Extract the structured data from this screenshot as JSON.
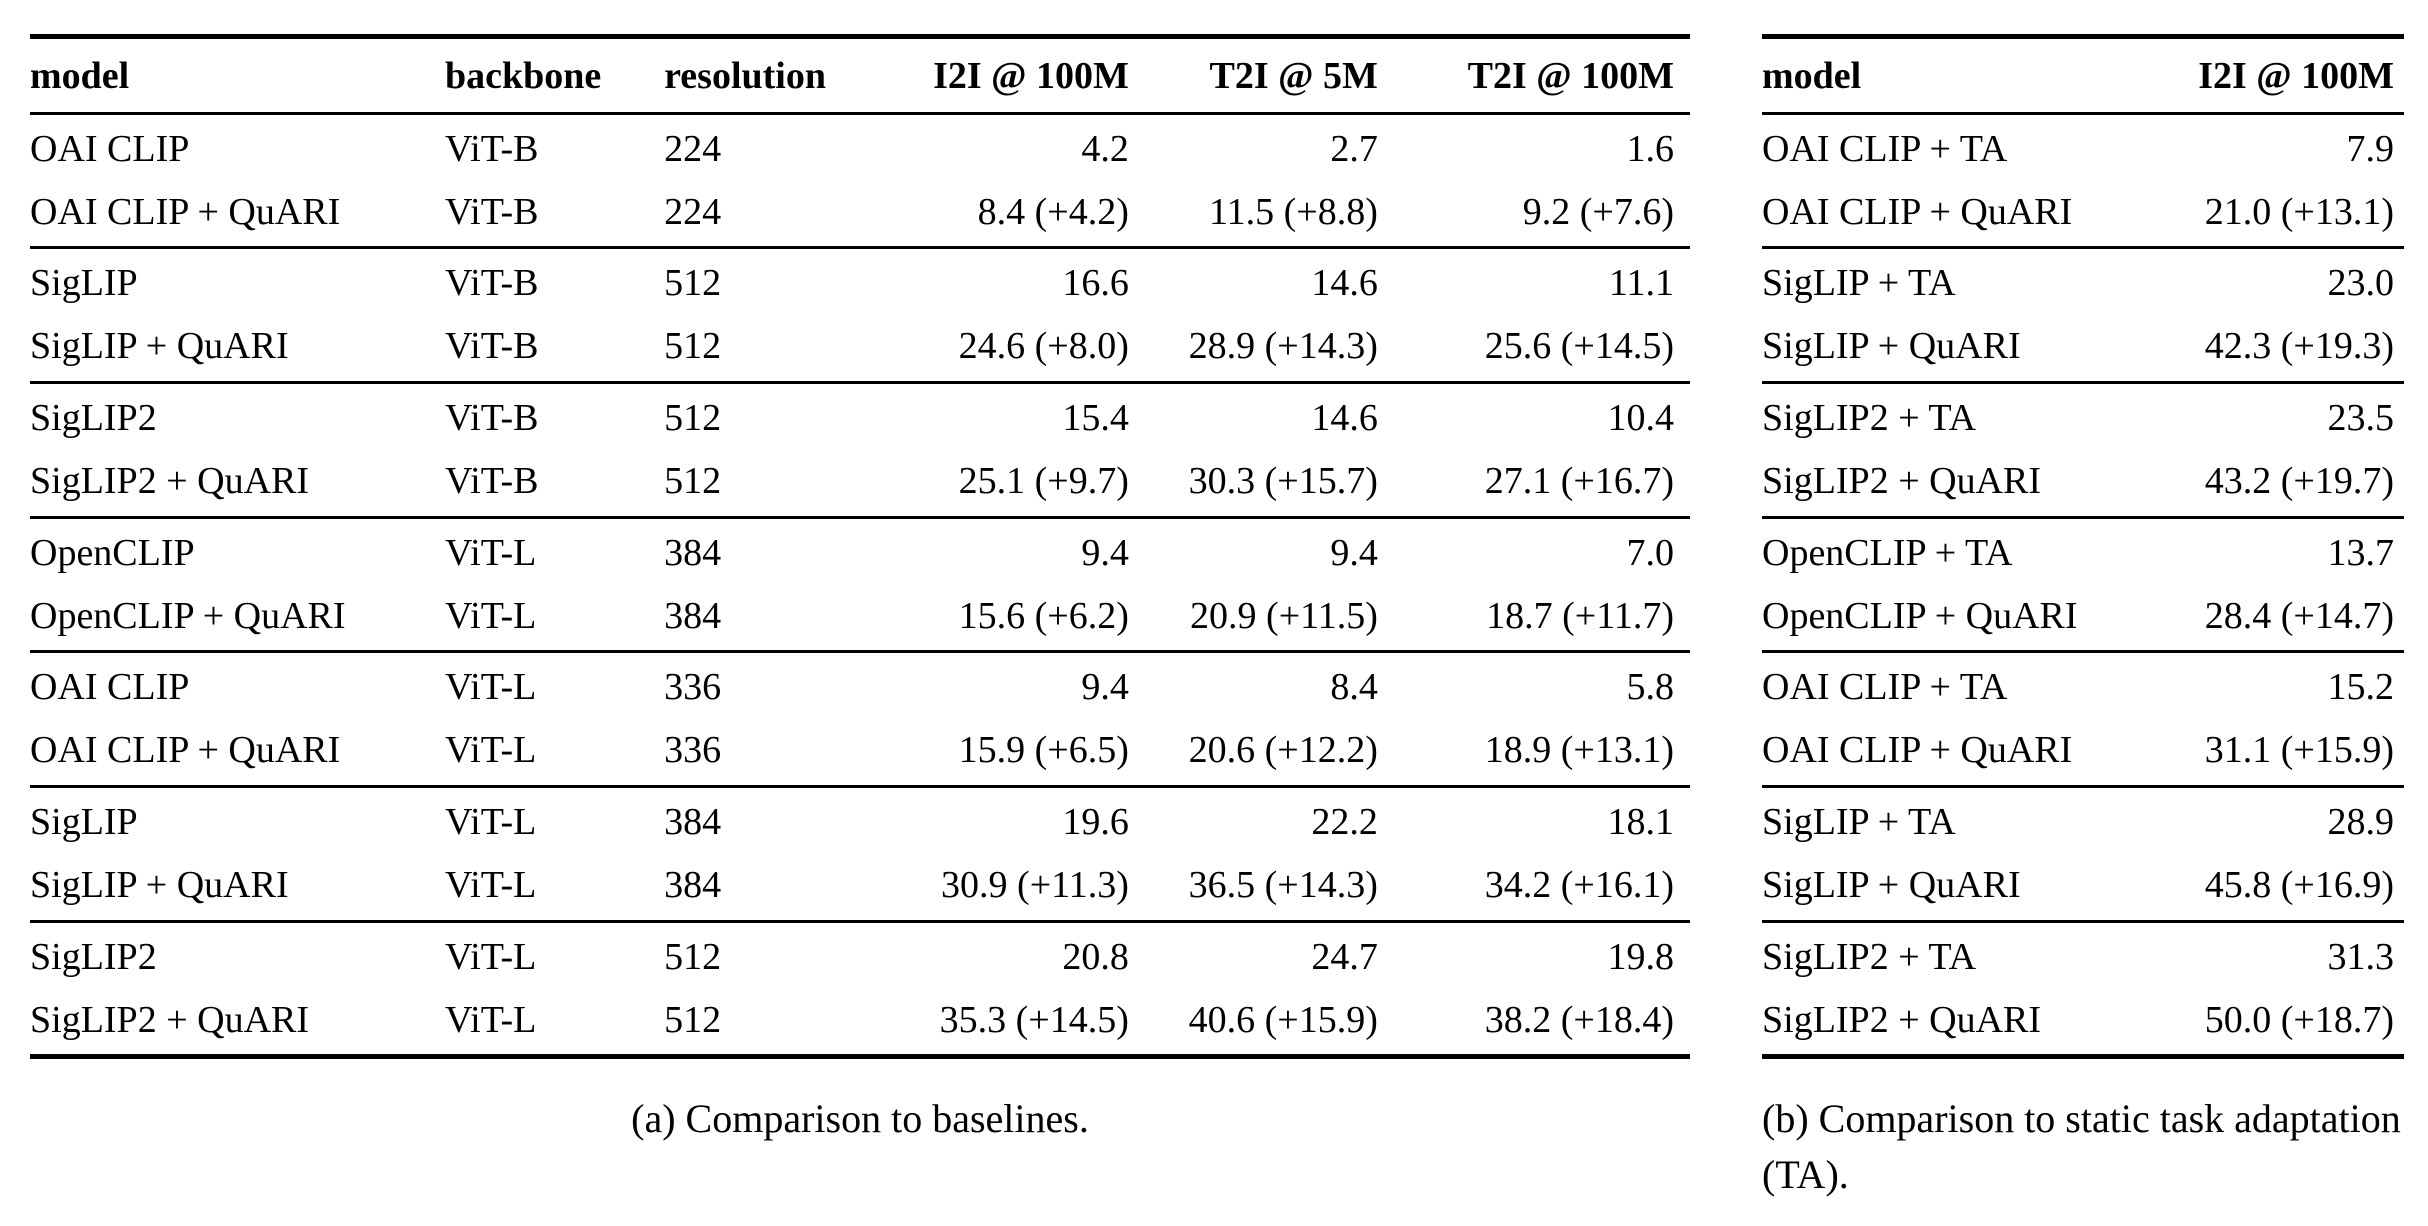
{
  "page": {
    "background_color": "#ffffff",
    "text_color": "#000000",
    "rule_color": "#000000"
  },
  "table_a": {
    "caption": "(a) Comparison to baselines.",
    "columns": [
      "model",
      "backbone",
      "resolution",
      "I2I @ 100M",
      "T2I @ 5M",
      "T2I @ 100M"
    ],
    "groups": [
      [
        [
          "OAI CLIP",
          "ViT-B",
          "224",
          "4.2",
          "2.7",
          "1.6"
        ],
        [
          "OAI CLIP + QuARI",
          "ViT-B",
          "224",
          "8.4 (+4.2)",
          "11.5 (+8.8)",
          "9.2 (+7.6)"
        ]
      ],
      [
        [
          "SigLIP",
          "ViT-B",
          "512",
          "16.6",
          "14.6",
          "11.1"
        ],
        [
          "SigLIP + QuARI",
          "ViT-B",
          "512",
          "24.6 (+8.0)",
          "28.9 (+14.3)",
          "25.6 (+14.5)"
        ]
      ],
      [
        [
          "SigLIP2",
          "ViT-B",
          "512",
          "15.4",
          "14.6",
          "10.4"
        ],
        [
          "SigLIP2 + QuARI",
          "ViT-B",
          "512",
          "25.1 (+9.7)",
          "30.3 (+15.7)",
          "27.1 (+16.7)"
        ]
      ],
      [
        [
          "OpenCLIP",
          "ViT-L",
          "384",
          "9.4",
          "9.4",
          "7.0"
        ],
        [
          "OpenCLIP + QuARI",
          "ViT-L",
          "384",
          "15.6 (+6.2)",
          "20.9 (+11.5)",
          "18.7 (+11.7)"
        ]
      ],
      [
        [
          "OAI CLIP",
          "ViT-L",
          "336",
          "9.4",
          "8.4",
          "5.8"
        ],
        [
          "OAI CLIP + QuARI",
          "ViT-L",
          "336",
          "15.9 (+6.5)",
          "20.6 (+12.2)",
          "18.9 (+13.1)"
        ]
      ],
      [
        [
          "SigLIP",
          "ViT-L",
          "384",
          "19.6",
          "22.2",
          "18.1"
        ],
        [
          "SigLIP + QuARI",
          "ViT-L",
          "384",
          "30.9 (+11.3)",
          "36.5 (+14.3)",
          "34.2 (+16.1)"
        ]
      ],
      [
        [
          "SigLIP2",
          "ViT-L",
          "512",
          "20.8",
          "24.7",
          "19.8"
        ],
        [
          "SigLIP2 + QuARI",
          "ViT-L",
          "512",
          "35.3 (+14.5)",
          "40.6 (+15.9)",
          "38.2 (+18.4)"
        ]
      ]
    ]
  },
  "table_b": {
    "caption": "(b) Comparison to static task adaptation (TA).",
    "columns": [
      "model",
      "I2I @ 100M"
    ],
    "groups": [
      [
        [
          "OAI CLIP + TA",
          "7.9"
        ],
        [
          "OAI CLIP + QuARI",
          "21.0 (+13.1)"
        ]
      ],
      [
        [
          "SigLIP + TA",
          "23.0"
        ],
        [
          "SigLIP + QuARI",
          "42.3 (+19.3)"
        ]
      ],
      [
        [
          "SigLIP2 + TA",
          "23.5"
        ],
        [
          "SigLIP2 + QuARI",
          "43.2 (+19.7)"
        ]
      ],
      [
        [
          "OpenCLIP + TA",
          "13.7"
        ],
        [
          "OpenCLIP + QuARI",
          "28.4 (+14.7)"
        ]
      ],
      [
        [
          "OAI CLIP + TA",
          "15.2"
        ],
        [
          "OAI CLIP + QuARI",
          "31.1 (+15.9)"
        ]
      ],
      [
        [
          "SigLIP + TA",
          "28.9"
        ],
        [
          "SigLIP + QuARI",
          "45.8 (+16.9)"
        ]
      ],
      [
        [
          "SigLIP2 + TA",
          "31.3"
        ],
        [
          "SigLIP2 + QuARI",
          "50.0 (+18.7)"
        ]
      ]
    ]
  }
}
